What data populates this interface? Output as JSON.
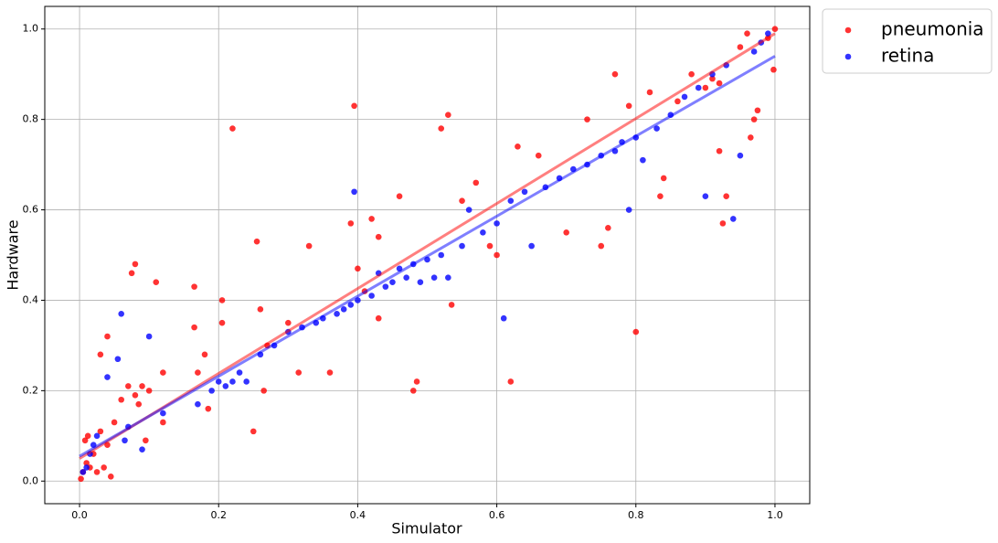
{
  "chart_data": {
    "type": "scatter",
    "xlabel": "Simulator",
    "ylabel": "Hardware",
    "xlim": [
      -0.05,
      1.05
    ],
    "ylim": [
      -0.05,
      1.05
    ],
    "xticks": [
      {
        "value": 0,
        "label": "0.0"
      },
      0.2,
      0.4,
      0.6,
      0.8,
      {
        "value": 1,
        "label": "1.0"
      }
    ],
    "yticks": [
      {
        "value": 0,
        "label": "0.0"
      },
      0.2,
      0.4,
      0.6,
      0.8,
      {
        "value": 1,
        "label": "1.0"
      }
    ],
    "grid": true,
    "legend": "outside upper right",
    "series": [
      {
        "name": "pneumonia",
        "color": "#ff0000",
        "x": [
          0.002,
          0.005,
          0.01,
          0.015,
          0.02,
          0.008,
          0.012,
          0.025,
          0.03,
          0.035,
          0.04,
          0.045,
          0.05,
          0.06,
          0.07,
          0.08,
          0.09,
          0.1,
          0.085,
          0.095,
          0.075,
          0.08,
          0.11,
          0.04,
          0.03,
          0.12,
          0.12,
          0.165,
          0.165,
          0.17,
          0.18,
          0.185,
          0.205,
          0.205,
          0.22,
          0.25,
          0.255,
          0.26,
          0.265,
          0.27,
          0.3,
          0.315,
          0.33,
          0.36,
          0.39,
          0.395,
          0.4,
          0.41,
          0.42,
          0.43,
          0.43,
          0.46,
          0.48,
          0.485,
          0.52,
          0.53,
          0.535,
          0.55,
          0.57,
          0.59,
          0.6,
          0.62,
          0.63,
          0.66,
          0.7,
          0.73,
          0.75,
          0.76,
          0.77,
          0.79,
          0.8,
          0.82,
          0.835,
          0.84,
          0.86,
          0.88,
          0.9,
          0.91,
          0.92,
          0.92,
          0.925,
          0.93,
          0.95,
          0.96,
          0.965,
          0.97,
          0.975,
          0.99,
          1.0,
          0.998
        ],
        "values": [
          0.005,
          0.02,
          0.04,
          0.03,
          0.06,
          0.09,
          0.1,
          0.02,
          0.11,
          0.03,
          0.08,
          0.01,
          0.13,
          0.18,
          0.21,
          0.19,
          0.21,
          0.2,
          0.17,
          0.09,
          0.46,
          0.48,
          0.44,
          0.32,
          0.28,
          0.24,
          0.13,
          0.43,
          0.34,
          0.24,
          0.28,
          0.16,
          0.4,
          0.35,
          0.78,
          0.11,
          0.53,
          0.38,
          0.2,
          0.3,
          0.35,
          0.24,
          0.52,
          0.24,
          0.57,
          0.83,
          0.47,
          0.42,
          0.58,
          0.54,
          0.36,
          0.63,
          0.2,
          0.22,
          0.78,
          0.81,
          0.39,
          0.62,
          0.66,
          0.52,
          0.5,
          0.22,
          0.74,
          0.72,
          0.55,
          0.8,
          0.52,
          0.56,
          0.9,
          0.83,
          0.33,
          0.86,
          0.63,
          0.67,
          0.84,
          0.9,
          0.87,
          0.89,
          0.88,
          0.73,
          0.57,
          0.63,
          0.96,
          0.99,
          0.76,
          0.8,
          0.82,
          0.98,
          1.0,
          0.91
        ]
      },
      {
        "name": "retina",
        "color": "#0000ff",
        "x": [
          0.005,
          0.01,
          0.015,
          0.02,
          0.025,
          0.04,
          0.055,
          0.06,
          0.065,
          0.07,
          0.09,
          0.1,
          0.12,
          0.17,
          0.19,
          0.2,
          0.21,
          0.22,
          0.23,
          0.24,
          0.26,
          0.28,
          0.3,
          0.32,
          0.34,
          0.35,
          0.37,
          0.38,
          0.39,
          0.395,
          0.4,
          0.42,
          0.43,
          0.44,
          0.45,
          0.46,
          0.47,
          0.48,
          0.49,
          0.5,
          0.51,
          0.52,
          0.53,
          0.55,
          0.56,
          0.58,
          0.6,
          0.61,
          0.62,
          0.64,
          0.65,
          0.67,
          0.69,
          0.71,
          0.73,
          0.75,
          0.77,
          0.78,
          0.79,
          0.8,
          0.81,
          0.83,
          0.85,
          0.87,
          0.89,
          0.9,
          0.91,
          0.93,
          0.94,
          0.95,
          0.97,
          0.98,
          0.99
        ],
        "values": [
          0.02,
          0.03,
          0.06,
          0.08,
          0.1,
          0.23,
          0.27,
          0.37,
          0.09,
          0.12,
          0.07,
          0.32,
          0.15,
          0.17,
          0.2,
          0.22,
          0.21,
          0.22,
          0.24,
          0.22,
          0.28,
          0.3,
          0.33,
          0.34,
          0.35,
          0.36,
          0.37,
          0.38,
          0.39,
          0.64,
          0.4,
          0.41,
          0.46,
          0.43,
          0.44,
          0.47,
          0.45,
          0.48,
          0.44,
          0.49,
          0.45,
          0.5,
          0.45,
          0.52,
          0.6,
          0.55,
          0.57,
          0.36,
          0.62,
          0.64,
          0.52,
          0.65,
          0.67,
          0.69,
          0.7,
          0.72,
          0.73,
          0.75,
          0.6,
          0.76,
          0.71,
          0.78,
          0.81,
          0.85,
          0.87,
          0.63,
          0.9,
          0.92,
          0.58,
          0.72,
          0.95,
          0.97,
          0.99
        ]
      }
    ],
    "trend_lines": [
      {
        "color": "#ff0000",
        "x": [
          0,
          1
        ],
        "values": [
          0.05,
          0.99
        ]
      },
      {
        "color": "#0000ff",
        "x": [
          0,
          1
        ],
        "values": [
          0.055,
          0.94
        ]
      }
    ]
  }
}
